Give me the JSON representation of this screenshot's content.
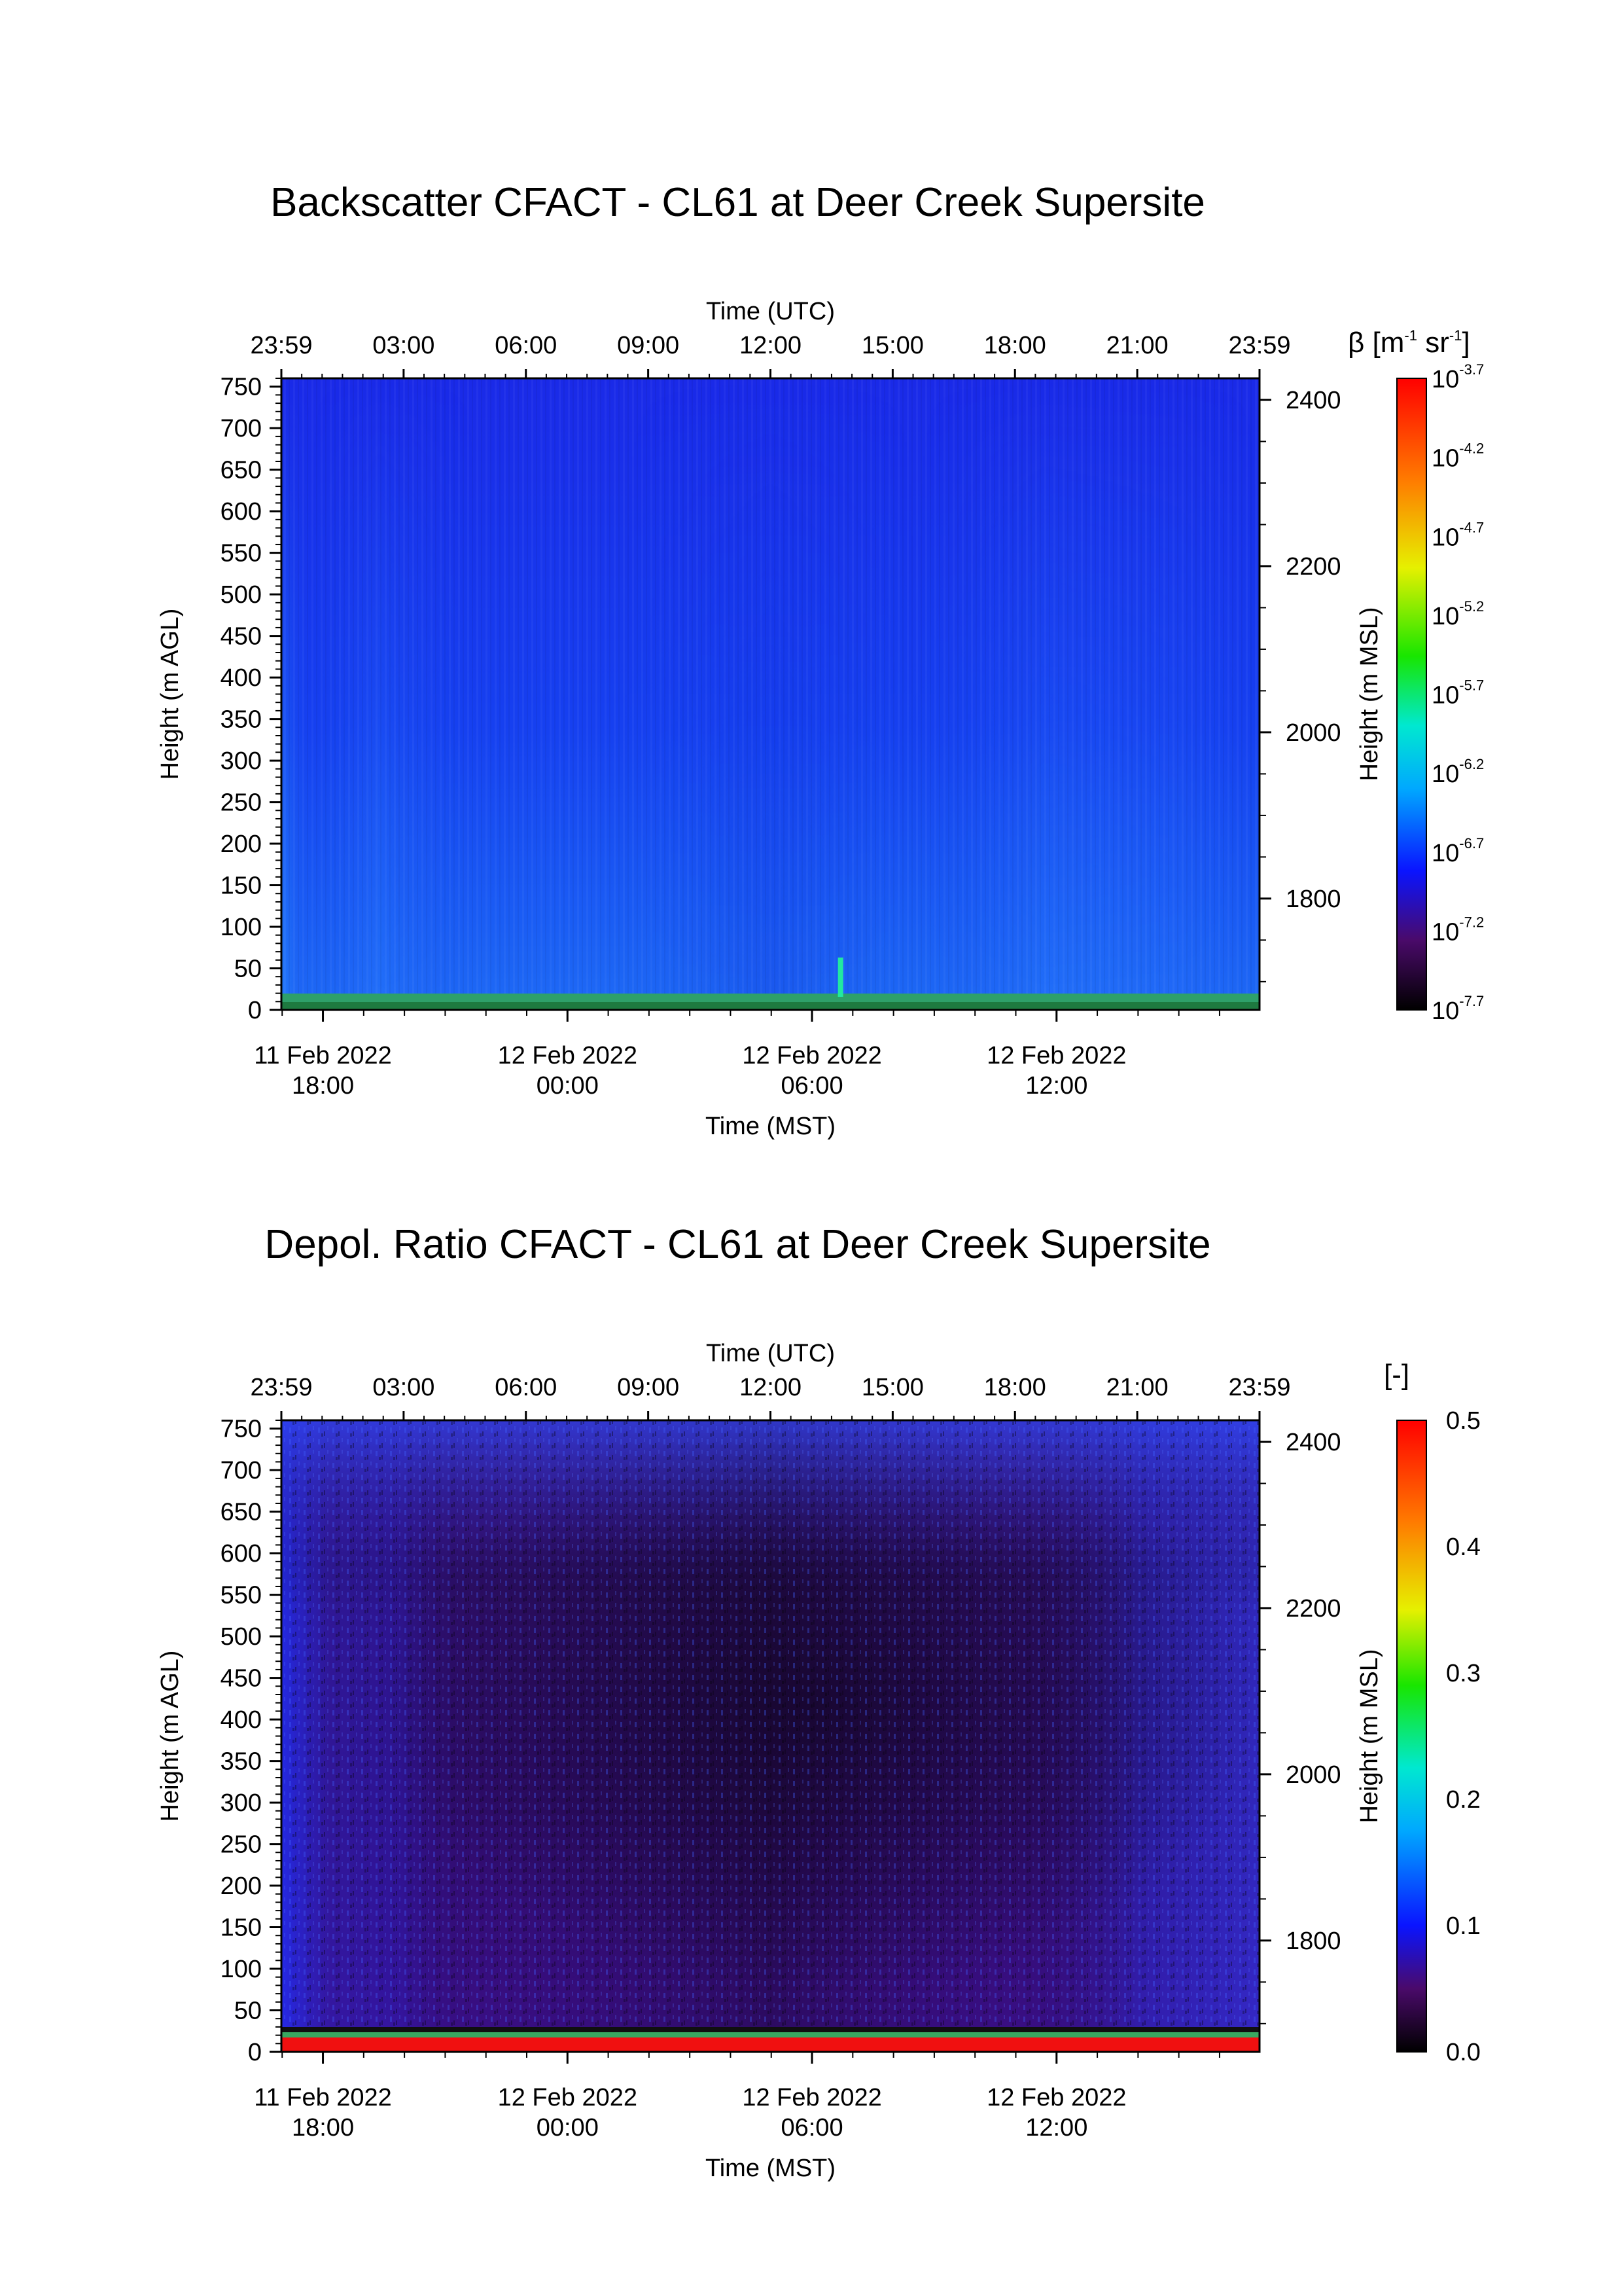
{
  "charts": [
    {
      "title": "Backscatter CFACT - CL61 at Deer Creek Supersite",
      "top_xlabel": "Time (UTC)",
      "bottom_xlabel": "Time (MST)",
      "left_ylabel": "Height (m AGL)",
      "right_ylabel": "Height (m MSL)",
      "utc_ticks": [
        "23:59",
        "03:00",
        "06:00",
        "09:00",
        "12:00",
        "15:00",
        "18:00",
        "21:00",
        "23:59"
      ],
      "mst_ticks": [
        {
          "date": "11 Feb 2022",
          "time": "18:00",
          "hour": 18
        },
        {
          "date": "12 Feb 2022",
          "time": "00:00",
          "hour": 24
        },
        {
          "date": "12 Feb 2022",
          "time": "06:00",
          "hour": 30
        },
        {
          "date": "12 Feb 2022",
          "time": "12:00",
          "hour": 36
        }
      ],
      "agl_ticks": [
        0,
        50,
        100,
        150,
        200,
        250,
        300,
        350,
        400,
        450,
        500,
        550,
        600,
        650,
        700,
        750
      ],
      "msl_ticks": [
        1800,
        2000,
        2200,
        2400
      ],
      "colorbar": {
        "label_prefix": "β [m",
        "label_exp1": "-1",
        "label_mid": " sr",
        "label_exp2": "-1",
        "label_suffix": "]",
        "tick_base": "10",
        "ticks": [
          "-3.7",
          "-4.2",
          "-4.7",
          "-5.2",
          "-5.7",
          "-6.2",
          "-6.7",
          "-7.2",
          "-7.7"
        ]
      }
    },
    {
      "title": "Depol. Ratio CFACT - CL61 at Deer Creek Supersite",
      "top_xlabel": "Time (UTC)",
      "bottom_xlabel": "Time (MST)",
      "left_ylabel": "Height (m AGL)",
      "right_ylabel": "Height (m MSL)",
      "utc_ticks": [
        "23:59",
        "03:00",
        "06:00",
        "09:00",
        "12:00",
        "15:00",
        "18:00",
        "21:00",
        "23:59"
      ],
      "mst_ticks": [
        {
          "date": "11 Feb 2022",
          "time": "18:00",
          "hour": 18
        },
        {
          "date": "12 Feb 2022",
          "time": "00:00",
          "hour": 24
        },
        {
          "date": "12 Feb 2022",
          "time": "06:00",
          "hour": 30
        },
        {
          "date": "12 Feb 2022",
          "time": "12:00",
          "hour": 36
        }
      ],
      "agl_ticks": [
        0,
        50,
        100,
        150,
        200,
        250,
        300,
        350,
        400,
        450,
        500,
        550,
        600,
        650,
        700,
        750
      ],
      "msl_ticks": [
        1800,
        2000,
        2200,
        2400
      ],
      "colorbar": {
        "label": "[-]",
        "ticks": [
          "0.5",
          "0.4",
          "0.3",
          "0.2",
          "0.1",
          "0.0"
        ]
      }
    }
  ],
  "chart_data": [
    {
      "type": "heatmap",
      "title": "Backscatter CFACT - CL61 at Deer Creek Supersite",
      "x_utc_range": [
        "23:59",
        "23:59"
      ],
      "x_mst_range_hours": [
        16.98,
        40.98
      ],
      "y_agl_range": [
        0,
        760
      ],
      "y_msl_range": [
        1666,
        2426
      ],
      "colorscale": "log10 backscatter",
      "zlim": [
        -7.7,
        -3.7
      ],
      "field_description_values": {
        "typical_log10": -6.8,
        "near_surface_log10": -5.6,
        "spike_time_mst": 30.7
      }
    },
    {
      "type": "heatmap",
      "title": "Depol. Ratio CFACT - CL61 at Deer Creek Supersite",
      "x_utc_range": [
        "23:59",
        "23:59"
      ],
      "x_mst_range_hours": [
        16.98,
        40.98
      ],
      "y_agl_range": [
        0,
        760
      ],
      "y_msl_range": [
        1666,
        2426
      ],
      "colorscale": "linear",
      "zlim": [
        0.0,
        0.5
      ],
      "field_description_values": {
        "typical": 0.06,
        "night_min": 0.04,
        "edges": 0.09,
        "surface": 0.5
      }
    }
  ]
}
